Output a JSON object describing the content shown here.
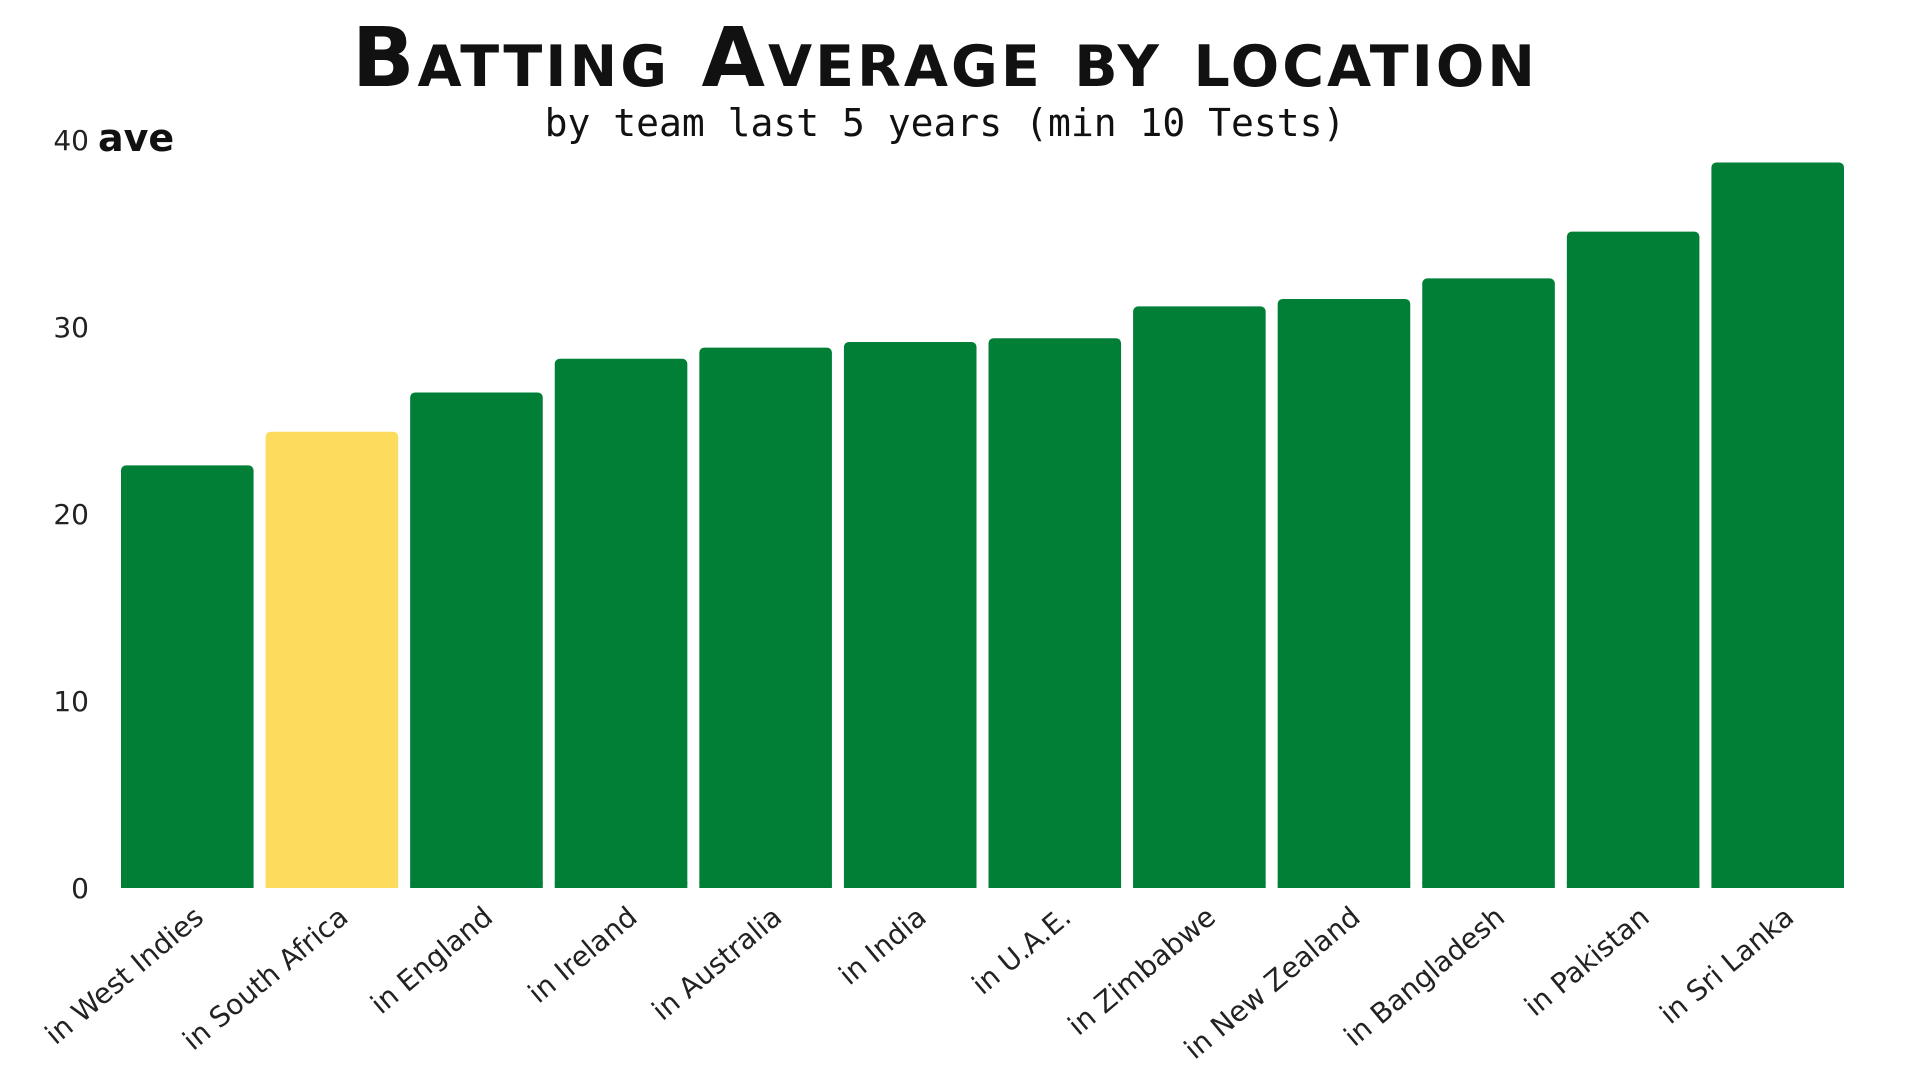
{
  "chart_data": {
    "type": "bar",
    "title": "Batting Average by location",
    "subtitle": "by team last 5 years (min 10 Tests)",
    "xlabel": "",
    "ylabel": "ave",
    "ylim": [
      0,
      40
    ],
    "yticks": [
      "0",
      "10",
      "20",
      "30",
      "40"
    ],
    "grid": false,
    "legend": "none",
    "categories": [
      "in West Indies",
      "in South Africa",
      "in England",
      "in Ireland",
      "in Australia",
      "in India",
      "in U.A.E.",
      "in Zimbabwe",
      "in New Zealand",
      "in Bangladesh",
      "in Pakistan",
      "in Sri Lanka"
    ],
    "values": [
      22.6,
      24.4,
      26.5,
      28.3,
      28.9,
      29.2,
      29.4,
      31.1,
      31.5,
      32.6,
      35.1,
      38.8
    ],
    "colors": {
      "default": "#027F37",
      "highlight": "#FDDB5C"
    },
    "highlight_index": 1
  }
}
